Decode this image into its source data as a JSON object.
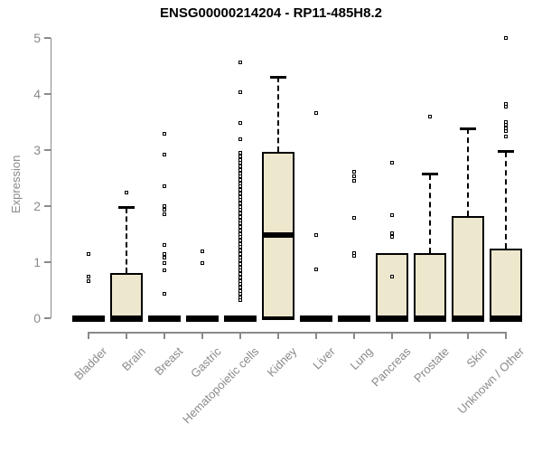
{
  "title": "ENSG00000214204 - RP11-485H8.2",
  "y_axis": {
    "label": "Expression",
    "ticks": [
      0,
      1,
      2,
      3,
      4,
      5
    ]
  },
  "colors": {
    "box_fill": "#EDE7CE",
    "box_stroke": "#000000",
    "axis_gray": "#8A8A8A",
    "title_color": "#000000",
    "background": "#FFFFFF"
  },
  "chart_data": {
    "type": "boxplot",
    "title": "ENSG00000214204 - RP11-485H8.2",
    "xlabel": "",
    "ylabel": "Expression",
    "ylim": [
      0,
      5
    ],
    "grid": false,
    "categories": [
      "Bladder",
      "Brain",
      "Breast",
      "Gastric",
      "Hematopoietic cells",
      "Kidney",
      "Liver",
      "Lung",
      "Pancreas",
      "Prostate",
      "Skin",
      "Unknown / Other"
    ],
    "boxes": [
      {
        "category": "Bladder",
        "q1": 0,
        "median": 0,
        "q3": 0,
        "whisker_low": 0,
        "whisker_high": 0,
        "outliers": [
          1.13,
          0.73,
          0.66
        ]
      },
      {
        "category": "Brain",
        "q1": 0,
        "median": 0,
        "q3": 0.8,
        "whisker_low": 0,
        "whisker_high": 1.97,
        "outliers": [
          2.23
        ]
      },
      {
        "category": "Breast",
        "q1": 0,
        "median": 0,
        "q3": 0,
        "whisker_low": 0,
        "whisker_high": 0,
        "outliers": [
          3.29,
          2.91,
          2.34,
          2.0,
          1.92,
          1.84,
          1.3,
          1.13,
          1.08,
          0.97,
          0.85,
          0.43
        ]
      },
      {
        "category": "Gastric",
        "q1": 0,
        "median": 0,
        "q3": 0,
        "whisker_low": 0,
        "whisker_high": 0,
        "outliers": [
          1.19,
          0.98
        ]
      },
      {
        "category": "Hematopoietic cells",
        "q1": 0,
        "median": 0,
        "q3": 0,
        "whisker_low": 0,
        "whisker_high": 0,
        "outliers": [
          4.56,
          4.03,
          3.47,
          3.18,
          2.94,
          2.88,
          2.82,
          2.76,
          2.7,
          2.64,
          2.58,
          2.52,
          2.46,
          2.4,
          2.34,
          2.28,
          2.22,
          2.16,
          2.1,
          2.04,
          1.98,
          1.92,
          1.86,
          1.8,
          1.74,
          1.68,
          1.62,
          1.56,
          1.5,
          1.44,
          1.38,
          1.32,
          1.26,
          1.2,
          1.14,
          1.08,
          1.02,
          0.96,
          0.9,
          0.84,
          0.78,
          0.72,
          0.66,
          0.6,
          0.54,
          0.48,
          0.42,
          0.37,
          0.31
        ]
      },
      {
        "category": "Kidney",
        "q1": 0,
        "median": 1.48,
        "q3": 2.96,
        "whisker_low": 0,
        "whisker_high": 4.3,
        "outliers": []
      },
      {
        "category": "Liver",
        "q1": 0,
        "median": 0,
        "q3": 0,
        "whisker_low": 0,
        "whisker_high": 0,
        "outliers": [
          3.65,
          1.48,
          0.87
        ]
      },
      {
        "category": "Lung",
        "q1": 0,
        "median": 0,
        "q3": 0,
        "whisker_low": 0,
        "whisker_high": 0,
        "outliers": [
          2.6,
          2.53,
          2.45,
          1.78,
          1.15,
          1.1
        ]
      },
      {
        "category": "Pancreas",
        "q1": 0,
        "median": 0,
        "q3": 1.16,
        "whisker_low": 0,
        "whisker_high": 0,
        "outliers": [
          2.77,
          1.83,
          1.51,
          1.44,
          0.73
        ]
      },
      {
        "category": "Prostate",
        "q1": 0,
        "median": 0,
        "q3": 1.16,
        "whisker_low": 0,
        "whisker_high": 2.57,
        "outliers": [
          3.59
        ]
      },
      {
        "category": "Skin",
        "q1": 0,
        "median": 0,
        "q3": 1.83,
        "whisker_low": 0,
        "whisker_high": 3.38,
        "outliers": []
      },
      {
        "category": "Unknown / Other",
        "q1": 0,
        "median": 0,
        "q3": 1.24,
        "whisker_low": 0,
        "whisker_high": 2.97,
        "outliers": [
          4.99,
          3.82,
          3.76,
          3.5,
          3.44,
          3.38,
          3.33,
          3.23
        ]
      }
    ]
  }
}
